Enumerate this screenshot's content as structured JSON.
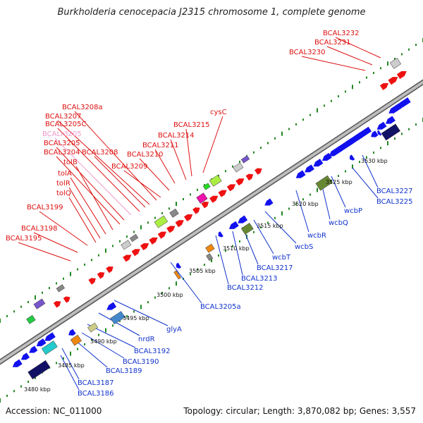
{
  "title": "Burkholderia cenocepacia J2315 chromosome 1, complete genome",
  "accession": "Accession: NC_011000",
  "summary": "Topology: circular; Length: 3,870,082 bp; Genes: 3,557",
  "colors": {
    "label_red": "#dd1111",
    "label_blue": "#1133cc",
    "label_pink": "#ee99cc",
    "backbone": "#999999",
    "tick_green": "#228822"
  },
  "scale_ticks": [
    "3480 kbp",
    "3485 kbp",
    "3490 kbp",
    "3495 kbp",
    "3500 kbp",
    "3505 kbp",
    "3510 kbp",
    "3515 kbp",
    "3520 kbp",
    "3525 kbp",
    "3530 kbp"
  ],
  "top_labels": [
    {
      "text": "BCAL3232",
      "color": "red"
    },
    {
      "text": "BCAL3231",
      "color": "red"
    },
    {
      "text": "BCAL3230",
      "color": "red"
    },
    {
      "text": "BCAL3208a",
      "color": "red"
    },
    {
      "text": "BCAL3207",
      "color": "red"
    },
    {
      "text": "BCAL3205C",
      "color": "red"
    },
    {
      "text": "BCALr3205",
      "color": "pink"
    },
    {
      "text": "BCAL3205",
      "color": "red"
    },
    {
      "text": "BCAL3204",
      "color": "red"
    },
    {
      "text": "BCAL3208",
      "color": "red"
    },
    {
      "text": "tolB",
      "color": "red"
    },
    {
      "text": "tolA",
      "color": "red"
    },
    {
      "text": "tolR",
      "color": "red"
    },
    {
      "text": "tolQ",
      "color": "red"
    },
    {
      "text": "BCAL3199",
      "color": "red"
    },
    {
      "text": "BCAL3198",
      "color": "red"
    },
    {
      "text": "BCAL3195",
      "color": "red"
    },
    {
      "text": "BCAL3209",
      "color": "red"
    },
    {
      "text": "BCAL3210",
      "color": "red"
    },
    {
      "text": "BCAL3211",
      "color": "red"
    },
    {
      "text": "BCAL3214",
      "color": "red"
    },
    {
      "text": "BCAL3215",
      "color": "red"
    },
    {
      "text": "cysC",
      "color": "red"
    }
  ],
  "bottom_labels": [
    {
      "text": "BCAL3227"
    },
    {
      "text": "BCAL3225"
    },
    {
      "text": "wcbP"
    },
    {
      "text": "wcbQ"
    },
    {
      "text": "wcbR"
    },
    {
      "text": "wcbS"
    },
    {
      "text": "wcbT"
    },
    {
      "text": "BCAL3217"
    },
    {
      "text": "BCAL3213"
    },
    {
      "text": "BCAL3212"
    },
    {
      "text": "BCAL3205a"
    },
    {
      "text": "glyA"
    },
    {
      "text": "nrdR"
    },
    {
      "text": "BCAL3192"
    },
    {
      "text": "BCAL3190"
    },
    {
      "text": "BCAL3189"
    },
    {
      "text": "BCAL3187"
    },
    {
      "text": "BCAL3186"
    }
  ]
}
